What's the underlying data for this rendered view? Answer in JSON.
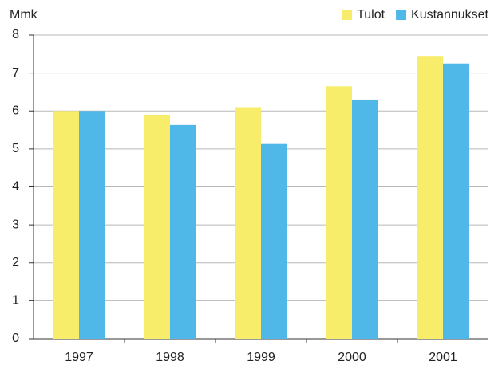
{
  "chart_data": {
    "type": "bar",
    "y_label": "Mmk",
    "categories": [
      "1997",
      "1998",
      "1999",
      "2000",
      "2001"
    ],
    "series": [
      {
        "name": "Tulot",
        "color": "#f7ed6a",
        "values": [
          6.0,
          5.9,
          6.1,
          6.65,
          7.45
        ]
      },
      {
        "name": "Kustannukset",
        "color": "#4fb8e8",
        "values": [
          6.0,
          5.63,
          5.13,
          6.3,
          7.25
        ]
      }
    ],
    "ylim": [
      0,
      8
    ],
    "yticks": [
      0,
      1,
      2,
      3,
      4,
      5,
      6,
      7,
      8
    ],
    "grid": true,
    "legend": "top-right"
  }
}
